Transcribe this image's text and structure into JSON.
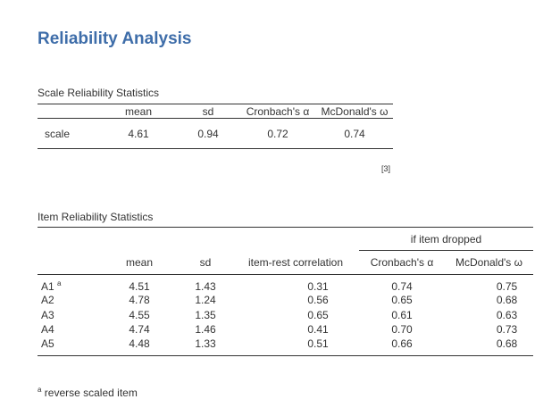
{
  "title": "Reliability Analysis",
  "scale": {
    "caption": "Scale Reliability Statistics",
    "headers": [
      "",
      "mean",
      "sd",
      "Cronbach's α",
      "McDonald's ω"
    ],
    "row": {
      "label": "scale",
      "mean": "4.61",
      "sd": "0.94",
      "alpha": "0.72",
      "omega": "0.74"
    },
    "note": "[3]"
  },
  "items": {
    "caption": "Item Reliability Statistics",
    "group_header": "if item dropped",
    "headers": [
      "",
      "mean",
      "sd",
      "item-rest correlation",
      "Cronbach's α",
      "McDonald's ω"
    ],
    "rows": [
      {
        "label": "A1",
        "sup": "a",
        "mean": "4.51",
        "sd": "1.43",
        "irc": "0.31",
        "alpha": "0.74",
        "omega": "0.75"
      },
      {
        "label": "A2",
        "sup": "",
        "mean": "4.78",
        "sd": "1.24",
        "irc": "0.56",
        "alpha": "0.65",
        "omega": "0.68"
      },
      {
        "label": "A3",
        "sup": "",
        "mean": "4.55",
        "sd": "1.35",
        "irc": "0.65",
        "alpha": "0.61",
        "omega": "0.63"
      },
      {
        "label": "A4",
        "sup": "",
        "mean": "4.74",
        "sd": "1.46",
        "irc": "0.41",
        "alpha": "0.70",
        "omega": "0.73"
      },
      {
        "label": "A5",
        "sup": "",
        "mean": "4.48",
        "sd": "1.33",
        "irc": "0.51",
        "alpha": "0.66",
        "omega": "0.68"
      }
    ],
    "footnote_mark": "a",
    "footnote_text": " reverse scaled item"
  }
}
